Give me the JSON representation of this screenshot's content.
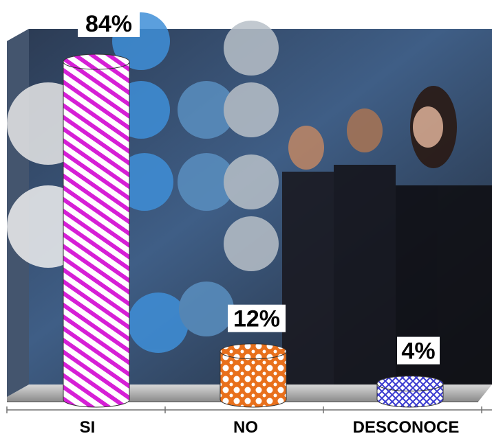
{
  "chart_data": {
    "type": "bar",
    "categories": [
      "SI",
      "NO",
      "DESCONOCE"
    ],
    "values": [
      84,
      12,
      4
    ],
    "value_labels": [
      "84%",
      "12%",
      "4%"
    ],
    "ylim": [
      0,
      100
    ],
    "colors": [
      "#d61fd6",
      "#e8701c",
      "#3a3ad0"
    ],
    "grid": false,
    "legend": "none",
    "title": "",
    "xlabel": "",
    "ylabel": ""
  }
}
